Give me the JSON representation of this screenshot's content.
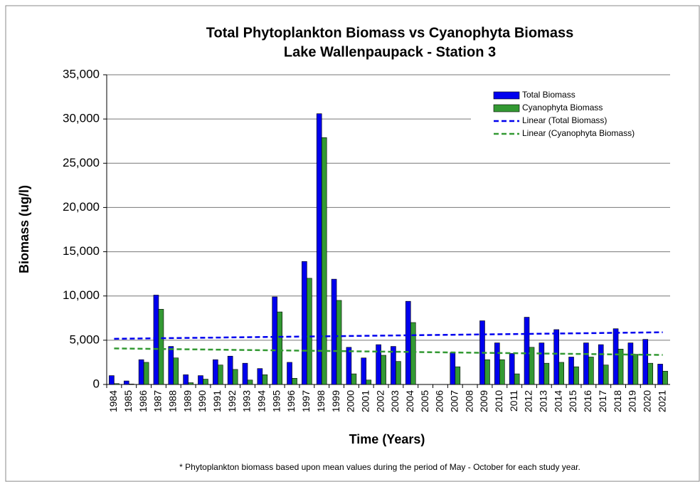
{
  "chart_data": {
    "type": "bar",
    "title": "Total Phytoplankton Biomass vs Cyanophyta Biomass",
    "subtitle": "Lake Wallenpaupack - Station 3",
    "y_label": "Biomass (ug/l)",
    "x_label": "Time (Years)",
    "footnote": "* Phytoplankton biomass based upon mean values during the period of May - October for each study year.",
    "categories": [
      "1984",
      "1985",
      "1986",
      "1987",
      "1988",
      "1989",
      "1990",
      "1991",
      "1992",
      "1993",
      "1994",
      "1995",
      "1996",
      "1997",
      "1998",
      "1999",
      "2000",
      "2001",
      "2002",
      "2003",
      "2004",
      "2005",
      "2006",
      "2007",
      "2008",
      "2009",
      "2010",
      "2011",
      "2012",
      "2013",
      "2014",
      "2015",
      "2016",
      "2017",
      "2018",
      "2019",
      "2020",
      "2021"
    ],
    "series": [
      {
        "name": "Total Biomass",
        "color": "#0000ee",
        "values": [
          1000,
          400,
          2800,
          10100,
          4300,
          1100,
          1000,
          2800,
          3200,
          2400,
          1800,
          9900,
          2500,
          13900,
          30600,
          11900,
          4200,
          3000,
          4500,
          4300,
          9400,
          null,
          null,
          3600,
          null,
          7200,
          4700,
          3500,
          7600,
          4700,
          6200,
          3100,
          4700,
          4500,
          6300,
          4700,
          5100,
          2300
        ]
      },
      {
        "name": "Cyanophyta Biomass",
        "color": "#339933",
        "values": [
          100,
          50,
          2500,
          8500,
          3000,
          200,
          600,
          2200,
          1700,
          500,
          1100,
          8200,
          700,
          12000,
          27900,
          9500,
          1200,
          500,
          3300,
          2600,
          7000,
          null,
          null,
          2000,
          null,
          2800,
          2800,
          1200,
          4200,
          2400,
          2500,
          2000,
          3100,
          2200,
          4000,
          3400,
          2400,
          1500
        ]
      }
    ],
    "trendlines": [
      {
        "name": "Linear (Total Biomass)",
        "color": "#0000ee",
        "series": 0
      },
      {
        "name": "Linear (Cyanophyta Biomass)",
        "color": "#339933",
        "series": 1
      }
    ],
    "ylim": [
      0,
      35000
    ],
    "yticks": [
      0,
      {
        "value": 5000,
        "label": "5,000"
      },
      {
        "value": 10000,
        "label": "10,000"
      },
      {
        "value": 15000,
        "label": "15,000"
      },
      {
        "value": 20000,
        "label": "20,000"
      },
      {
        "value": 25000,
        "label": "25,000"
      },
      {
        "value": 30000,
        "label": "30,000"
      },
      {
        "value": 35000,
        "label": "35,000"
      }
    ],
    "grid": true,
    "legend": "top-right"
  }
}
